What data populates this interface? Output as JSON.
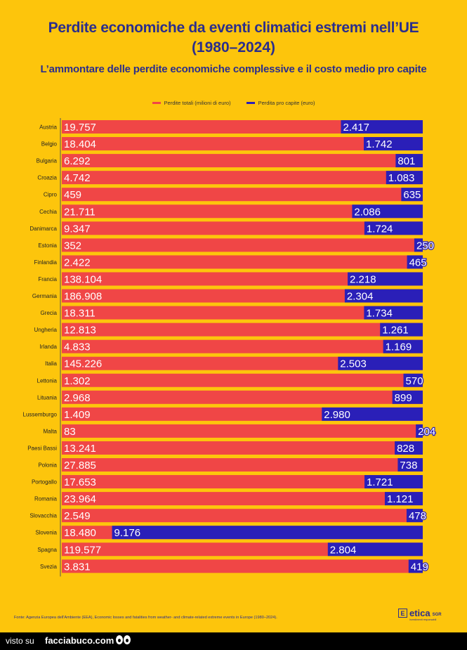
{
  "header": {
    "title_line1": "Perdite economiche da eventi climatici estremi nell’UE",
    "title_line2": "(1980–2024)",
    "subtitle": "L’ammontare delle perdite economiche complessive e il costo medio pro capite"
  },
  "colors": {
    "total": "#F04646",
    "per_capita": "#2A1FB8",
    "background": "#FDC50C",
    "title": "#2B2E8C"
  },
  "chart_data": {
    "type": "bar",
    "orientation": "horizontal",
    "categories": [
      "Austria",
      "Belgio",
      "Bulgaria",
      "Croazia",
      "Cipro",
      "Cechia",
      "Danimarca",
      "Estonia",
      "Finlandia",
      "Francia",
      "Germania",
      "Grecia",
      "Ungheria",
      "Irlanda",
      "Italia",
      "Lettonia",
      "Lituania",
      "Lussemburgo",
      "Malta",
      "Paesi Bassi",
      "Polonia",
      "Portogallo",
      "Romania",
      "Slovacchia",
      "Slovenia",
      "Spagna",
      "Svezia"
    ],
    "series": [
      {
        "name": "Perdite totali (milioni di euro)",
        "values": [
          19757,
          18404,
          6292,
          4742,
          459,
          21711,
          9347,
          352,
          2422,
          138104,
          186908,
          18311,
          12813,
          4833,
          145226,
          1302,
          2968,
          1409,
          83,
          13241,
          27885,
          17653,
          23964,
          2549,
          18480,
          119577,
          3831
        ],
        "labels": [
          "19.757",
          "18.404",
          "6.292",
          "4.742",
          "459",
          "21.711",
          "9.347",
          "352",
          "2.422",
          "138.104",
          "186.908",
          "18.311",
          "12.813",
          "4.833",
          "145.226",
          "1.302",
          "2.968",
          "1.409",
          "83",
          "13.241",
          "27.885",
          "17.653",
          "23.964",
          "2.549",
          "18.480",
          "119.577",
          "3.831"
        ]
      },
      {
        "name": "Perdita pro capite (euro)",
        "values": [
          2417,
          1742,
          801,
          1083,
          635,
          2086,
          1724,
          250,
          465,
          2218,
          2304,
          1734,
          1261,
          1169,
          2503,
          570,
          899,
          2980,
          204,
          828,
          738,
          1721,
          1121,
          478,
          9176,
          2804,
          419
        ],
        "labels": [
          "2.417",
          "1.742",
          "801",
          "1.083",
          "635",
          "2.086",
          "1.724",
          "250",
          "465",
          "2.218",
          "2.304",
          "1.734",
          "1.261",
          "1.169",
          "2.503",
          "570",
          "899",
          "2.980",
          "204",
          "828",
          "738",
          "1.721",
          "1.121",
          "478",
          "9.176",
          "2.804",
          "419"
        ]
      }
    ],
    "per_capita_scale_max": 10660,
    "legend_position": "top-center",
    "grid": false
  },
  "footer": {
    "source": "Fonte: Agenzia Europea dell'Ambiente (EEA), Economic losses and fatalities from weather- and climate-related extreme events in Europe (1980–2024).",
    "logo_text": "etica",
    "logo_suffix": "SGR",
    "logo_tagline": "Investimenti responsabili"
  },
  "watermark": {
    "visto": "visto su",
    "site": "facciabuco.com"
  }
}
